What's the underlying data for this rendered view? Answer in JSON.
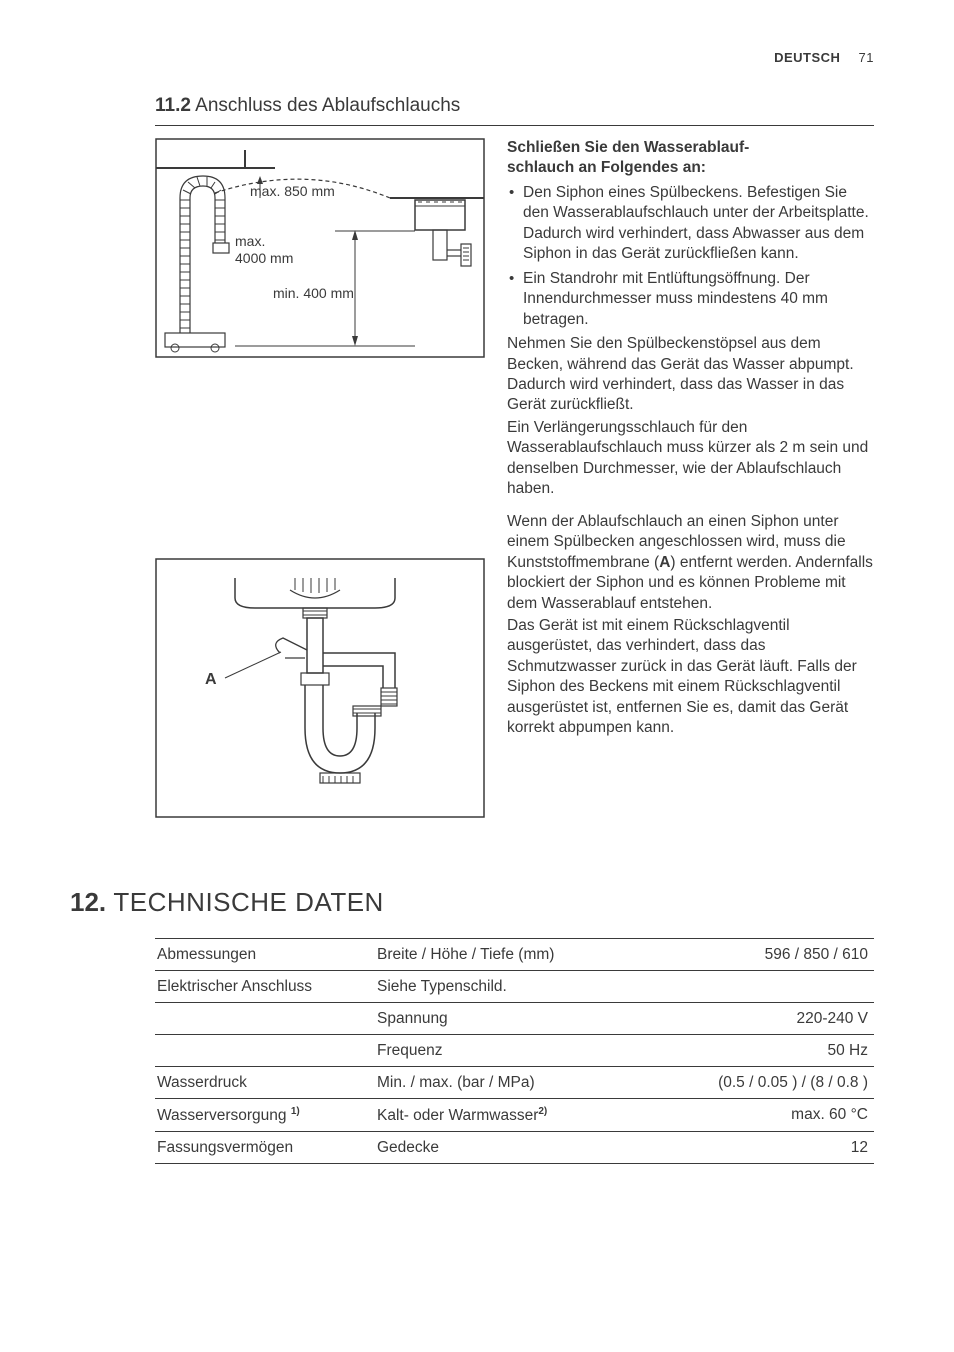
{
  "header": {
    "language": "DEUTSCH",
    "page": "71"
  },
  "section_11_2": {
    "number": "11.2",
    "title": "Anschluss des Ablaufschlauchs",
    "diagram1": {
      "label_max_top": "max. 850 mm",
      "label_max_bottom_1": "max.",
      "label_max_bottom_2": "4000 mm",
      "label_min": "min. 400 mm"
    },
    "diagram2": {
      "label_A": "A"
    },
    "right": {
      "heading_line1": "Schließen Sie den Wasserablauf-",
      "heading_line2": "schlauch an Folgendes an:",
      "bullet1": "Den Siphon eines Spülbeckens. Befestigen Sie den Wasserablaufschlauch unter der Arbeitsplatte. Dadurch wird verhindert, dass Abwasser aus dem Siphon in das Gerät zurückfließen kann.",
      "bullet2": "Ein Standrohr mit Entlüftungsöffnung. Der Innendurchmesser muss mindestens 40 mm betragen.",
      "para1": "Nehmen Sie den Spülbeckenstöpsel aus dem Becken, während das Gerät das Wasser abpumpt. Dadurch wird verhindert, dass das Wasser in das Gerät zurückfließt.",
      "para2": "Ein Verlängerungsschlauch für den Wasserablaufschlauch muss kürzer als 2 m sein und denselben Durchmesser, wie der Ablaufschlauch haben.",
      "para3_pre": "Wenn der Ablaufschlauch an einen Siphon unter einem Spülbecken angeschlossen wird, muss die Kunststoffmembrane (",
      "para3_bold": "A",
      "para3_post": ") entfernt werden. Andernfalls blockiert der Siphon und es können Probleme mit dem Wasserablauf entstehen.",
      "para4": "Das Gerät ist mit einem Rückschlagventil ausgerüstet, das verhindert, dass das Schmutzwasser zurück in das Gerät läuft. Falls der Siphon des Beckens mit einem Rückschlagventil ausgerüstet ist, entfernen Sie es, damit das Gerät korrekt abpumpen kann."
    }
  },
  "section_12": {
    "number": "12.",
    "title": "TECHNISCHE DATEN",
    "rows": [
      {
        "c1": "Abmessungen",
        "c2": "Breite / Höhe / Tiefe (mm)",
        "c3": "596 / 850 / 610"
      },
      {
        "c1": "Elektrischer Anschluss",
        "c2": "Siehe Typenschild.",
        "c3": ""
      },
      {
        "c1": "",
        "c2": "Spannung",
        "c3": "220-240 V"
      },
      {
        "c1": "",
        "c2": "Frequenz",
        "c3": "50 Hz"
      },
      {
        "c1": "Wasserdruck",
        "c2": "Min. / max. (bar / MPa)",
        "c3": "(0.5 / 0.05 ) / (8 / 0.8 )"
      },
      {
        "c1": "Wasserversorgung ",
        "c1_sup": "1)",
        "c2": "Kalt- oder Warmwasser",
        "c2_sup": "2)",
        "c3": "max. 60 °C"
      },
      {
        "c1": "Fassungsvermögen",
        "c2": "Gedecke",
        "c3": "12"
      }
    ]
  }
}
